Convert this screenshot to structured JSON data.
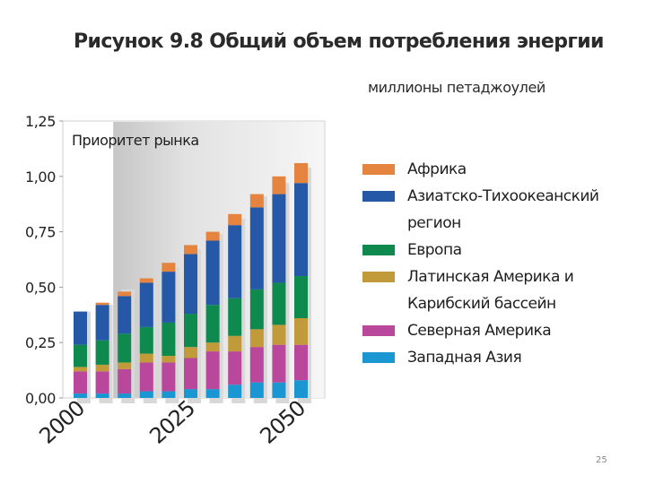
{
  "page_number": "25",
  "chart_data": {
    "type": "bar",
    "stacked": true,
    "title": "Рисунок 9.8 Общий объем потребления энергии",
    "units": "миллионы петаджоулей",
    "annotation": "Приоритет рынка",
    "x": [
      2000,
      2005,
      2010,
      2015,
      2020,
      2025,
      2030,
      2035,
      2040,
      2045,
      2050
    ],
    "x_tick_labels": [
      "2000",
      "2025",
      "2050"
    ],
    "x_tick_values": [
      2000,
      2025,
      2050
    ],
    "ylim": [
      0,
      1.25
    ],
    "y_ticks": [
      "0,00",
      "0,25",
      "0,50",
      "0,75",
      "1,00",
      "1,25"
    ],
    "y_tick_values": [
      0,
      0.25,
      0.5,
      0.75,
      1.0,
      1.25
    ],
    "series": [
      {
        "name": "Западная Азия",
        "color": "#1a96d2",
        "values": [
          0.02,
          0.02,
          0.02,
          0.03,
          0.03,
          0.04,
          0.04,
          0.06,
          0.07,
          0.07,
          0.08
        ]
      },
      {
        "name": "Северная Америка",
        "color": "#b9479b",
        "values": [
          0.1,
          0.1,
          0.11,
          0.13,
          0.13,
          0.14,
          0.17,
          0.15,
          0.16,
          0.17,
          0.16
        ]
      },
      {
        "name": "Латинская Америка и Карибский бассейн",
        "color": "#c19a3a",
        "values": [
          0.02,
          0.03,
          0.03,
          0.04,
          0.03,
          0.05,
          0.04,
          0.07,
          0.08,
          0.09,
          0.12
        ]
      },
      {
        "name": "Европа",
        "color": "#0f8a4e",
        "values": [
          0.1,
          0.11,
          0.13,
          0.12,
          0.15,
          0.15,
          0.17,
          0.17,
          0.18,
          0.19,
          0.19
        ]
      },
      {
        "name": "Азиатско-Тихоокеанский регион",
        "color": "#2658a8",
        "values": [
          0.15,
          0.16,
          0.17,
          0.2,
          0.23,
          0.27,
          0.29,
          0.33,
          0.37,
          0.4,
          0.42
        ]
      },
      {
        "name": "Африка",
        "color": "#e4843f",
        "values": [
          0.0,
          0.01,
          0.02,
          0.02,
          0.04,
          0.04,
          0.04,
          0.05,
          0.06,
          0.08,
          0.09
        ]
      }
    ],
    "shadow_values": [
      0.39,
      0.42,
      0.49,
      0.52,
      0.59,
      0.67,
      0.74,
      0.81,
      0.91,
      0.97,
      1.04
    ],
    "legend_order": [
      5,
      4,
      3,
      2,
      1,
      0
    ],
    "legend_placement": "right"
  }
}
